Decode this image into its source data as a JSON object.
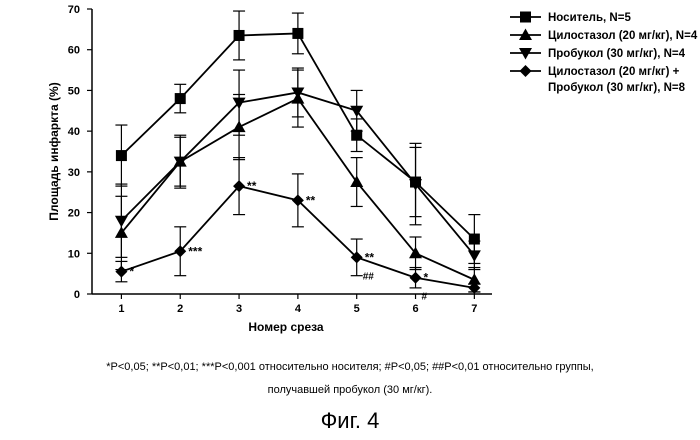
{
  "chart_data": {
    "type": "line",
    "xlabel": "Номер среза",
    "ylabel": "Площадь инфаркта (%)",
    "x": [
      1,
      2,
      3,
      4,
      5,
      6,
      7
    ],
    "xlim": [
      0.5,
      7.3
    ],
    "ylim": [
      0,
      70
    ],
    "yticks": [
      0,
      10,
      20,
      30,
      40,
      50,
      60,
      70
    ],
    "grid": false,
    "legend_position": "top-right",
    "series": [
      {
        "name": "Носитель, N=5",
        "marker": "square",
        "values": [
          34,
          48,
          63.5,
          64,
          39,
          27.5,
          13.5
        ],
        "errors": [
          7.5,
          3.5,
          6,
          5,
          4,
          8.5,
          6
        ],
        "annotations": []
      },
      {
        "name": "Цилостазол (20 мг/кг), N=4",
        "marker": "triangle-up",
        "values": [
          15,
          32.5,
          41,
          48,
          27.5,
          10,
          3.5
        ],
        "errors": [
          9,
          6.5,
          8,
          7,
          6,
          4,
          3
        ],
        "annotations": []
      },
      {
        "name": "Пробукол (30 мг/кг), N=4",
        "marker": "triangle-down",
        "values": [
          18,
          32.5,
          47,
          49.5,
          45,
          27,
          9.5
        ],
        "errors": [
          9,
          6,
          8,
          6,
          5,
          10,
          3.5
        ],
        "annotations": []
      },
      {
        "name": "Цилостазол (20 мг/кг) + Пробукол (30 мг/кг), N=8",
        "legend_lines": [
          "Цилостазол (20 мг/кг) +",
          "Пробукол (30 мг/кг), N=8"
        ],
        "marker": "diamond",
        "values": [
          5.5,
          10.5,
          26.5,
          23,
          9,
          4,
          1.5
        ],
        "errors": [
          2.5,
          6,
          7,
          6.5,
          4.5,
          2.5,
          1
        ],
        "annotations": [
          {
            "x": 1,
            "text": "*"
          },
          {
            "x": 2,
            "text": "***"
          },
          {
            "x": 3,
            "text": "**"
          },
          {
            "x": 4,
            "text": "**"
          },
          {
            "x": 5,
            "text": "**"
          },
          {
            "x": 5,
            "text": "##"
          },
          {
            "x": 6,
            "text": "*"
          },
          {
            "x": 6,
            "text": "#"
          }
        ]
      }
    ]
  },
  "footnote_line1": "*P<0,05; **P<0,01; ***P<0,001 относительно носителя; #P<0,05; ##P<0,01 относительно группы,",
  "footnote_line2": "получавшей пробукол (30 мг/кг).",
  "figure_caption": "Фиг. 4"
}
